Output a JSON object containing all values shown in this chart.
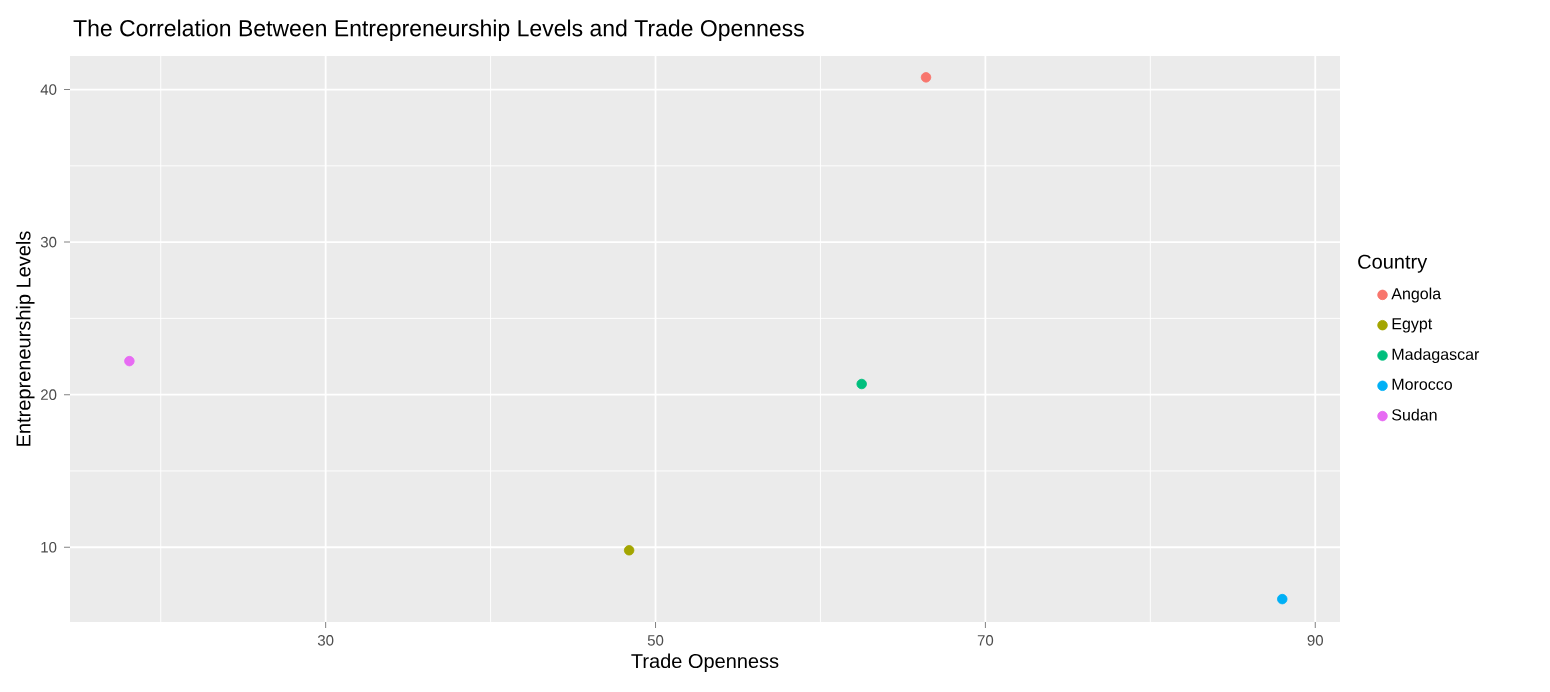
{
  "chart_data": {
    "type": "scatter",
    "title": "The Correlation Between Entrepreneurship Levels and Trade Openness",
    "xlabel": "Trade Openness",
    "ylabel": "Entrepreneurship Levels",
    "legend_title": "Country",
    "xlim": [
      14.5,
      91.5
    ],
    "ylim": [
      5.1,
      42.2
    ],
    "xticks": [
      {
        "value": 20,
        "label": null
      },
      30,
      {
        "value": 40,
        "label": null
      },
      50,
      {
        "value": 60,
        "label": null
      },
      70,
      {
        "value": 80,
        "label": null
      },
      90
    ],
    "yticks": [
      10,
      {
        "value": 15,
        "label": null
      },
      20,
      {
        "value": 25,
        "label": null
      },
      30,
      {
        "value": 35,
        "label": null
      },
      40
    ],
    "grid": true,
    "legend": "right",
    "series": [
      {
        "name": "Angola",
        "color": "#f8766d",
        "x": [
          66.4
        ],
        "values": [
          40.8
        ]
      },
      {
        "name": "Egypt",
        "color": "#a3a500",
        "x": [
          48.4
        ],
        "values": [
          9.8
        ]
      },
      {
        "name": "Madagascar",
        "color": "#00bf7d",
        "x": [
          62.5
        ],
        "values": [
          20.7
        ]
      },
      {
        "name": "Morocco",
        "color": "#00b0f6",
        "x": [
          88.0
        ],
        "values": [
          6.6
        ]
      },
      {
        "name": "Sudan",
        "color": "#e76bf3",
        "x": [
          18.1
        ],
        "values": [
          22.2
        ]
      }
    ]
  }
}
